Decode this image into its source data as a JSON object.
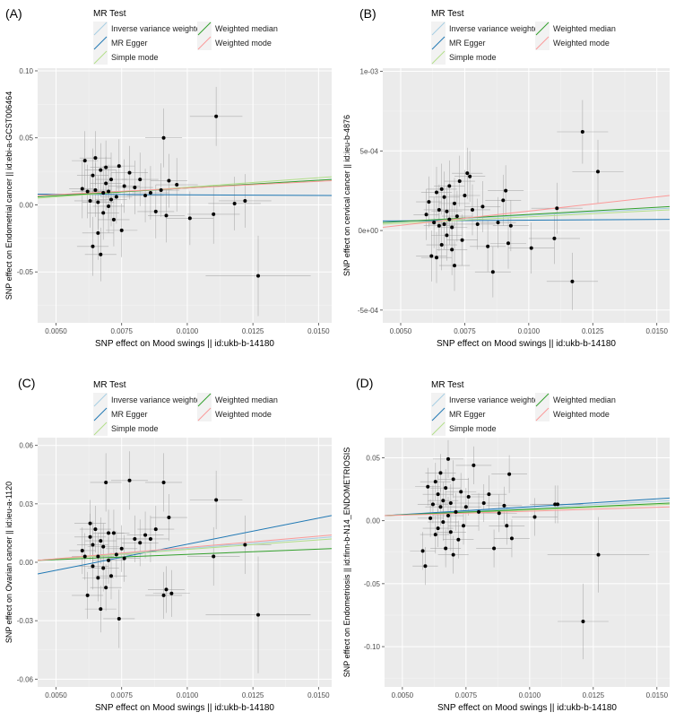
{
  "x_ticks": [
    "0.0050",
    "0.0075",
    "0.0100",
    "0.0125",
    "0.0150"
  ],
  "x_tick_values": [
    0.005,
    0.0075,
    0.01,
    0.0125,
    0.015
  ],
  "legend": {
    "title": "MR Test",
    "entries": [
      {
        "label": "Inverse variance weighted",
        "color": "#a6cee3"
      },
      {
        "label": "MR Egger",
        "color": "#1f78b4"
      },
      {
        "label": "Simple mode",
        "color": "#b2df8a"
      },
      {
        "label": "Weighted median",
        "color": "#33a02c"
      },
      {
        "label": "Weighted mode",
        "color": "#fb9a99"
      }
    ]
  },
  "chart_data": [
    {
      "type": "scatter",
      "panel_label": "(A)",
      "xlabel": "SNP effect on Mood swings || id:ukb-b-14180",
      "ylabel": "SNP effect on Endometrial cancer || id:ebi-a-GCST006464",
      "xlim": [
        0.0043,
        0.0155
      ],
      "ylim": [
        -0.088,
        0.102
      ],
      "y_ticks": [
        "-0.05",
        "0.00",
        "0.05",
        "0.10"
      ],
      "y_tick_values": [
        -0.05,
        0,
        0.05,
        0.1
      ],
      "lines": [
        {
          "method": "Inverse variance weighted",
          "y0": 0.006,
          "y1": 0.019
        },
        {
          "method": "MR Egger",
          "y0": 0.008,
          "y1": 0.007
        },
        {
          "method": "Simple mode",
          "y0": 0.005,
          "y1": 0.021
        },
        {
          "method": "Weighted median",
          "y0": 0.006,
          "y1": 0.019
        },
        {
          "method": "Weighted mode",
          "y0": 0.007,
          "y1": 0.018
        }
      ],
      "points": [
        [
          0.006,
          0.012,
          0.0005,
          0.022
        ],
        [
          0.0061,
          0.033,
          0.0005,
          0.022
        ],
        [
          0.0062,
          0.01,
          0.0006,
          0.02
        ],
        [
          0.0063,
          0.003,
          0.0006,
          0.02
        ],
        [
          0.0064,
          -0.031,
          0.0006,
          0.022
        ],
        [
          0.0064,
          0.022,
          0.0006,
          0.02
        ],
        [
          0.0065,
          0.035,
          0.0006,
          0.02
        ],
        [
          0.0065,
          0.011,
          0.0006,
          0.02
        ],
        [
          0.0066,
          -0.021,
          0.0006,
          0.02
        ],
        [
          0.0066,
          0.002,
          0.0006,
          0.02
        ],
        [
          0.0067,
          0.026,
          0.0006,
          0.02
        ],
        [
          0.0067,
          -0.037,
          0.0006,
          0.02
        ],
        [
          0.0068,
          0.009,
          0.0006,
          0.02
        ],
        [
          0.0068,
          -0.006,
          0.0006,
          0.02
        ],
        [
          0.0069,
          0.028,
          0.0006,
          0.02
        ],
        [
          0.0069,
          0.016,
          0.0006,
          0.02
        ],
        [
          0.007,
          -0.001,
          0.0006,
          0.02
        ],
        [
          0.007,
          0.01,
          0.0006,
          0.02
        ],
        [
          0.0071,
          0.004,
          0.0006,
          0.02
        ],
        [
          0.0071,
          0.019,
          0.0006,
          0.02
        ],
        [
          0.0072,
          -0.011,
          0.0006,
          0.02
        ],
        [
          0.0073,
          0.006,
          0.0006,
          0.02
        ],
        [
          0.0074,
          0.029,
          0.0006,
          0.02
        ],
        [
          0.0075,
          -0.019,
          0.0006,
          0.02
        ],
        [
          0.0076,
          0.014,
          0.0006,
          0.02
        ],
        [
          0.0078,
          0.024,
          0.0007,
          0.02
        ],
        [
          0.008,
          0.013,
          0.0007,
          0.02
        ],
        [
          0.0082,
          0.019,
          0.0007,
          0.02
        ],
        [
          0.0084,
          0.007,
          0.0007,
          0.02
        ],
        [
          0.0086,
          0.009,
          0.0007,
          0.02
        ],
        [
          0.0088,
          -0.005,
          0.0007,
          0.02
        ],
        [
          0.009,
          0.011,
          0.0007,
          0.02
        ],
        [
          0.0091,
          0.05,
          0.0007,
          0.022
        ],
        [
          0.0092,
          -0.008,
          0.0007,
          0.02
        ],
        [
          0.0093,
          0.018,
          0.0007,
          0.02
        ],
        [
          0.0096,
          0.015,
          0.0008,
          0.02
        ],
        [
          0.0101,
          -0.01,
          0.0009,
          0.02
        ],
        [
          0.011,
          -0.007,
          0.001,
          0.022
        ],
        [
          0.0111,
          0.066,
          0.001,
          0.022
        ],
        [
          0.0118,
          0.001,
          0.001,
          0.02
        ],
        [
          0.0122,
          0.003,
          0.001,
          0.02
        ],
        [
          0.0127,
          -0.053,
          0.002,
          0.03
        ]
      ]
    },
    {
      "type": "scatter",
      "panel_label": "(B)",
      "xlabel": "SNP effect on Mood swings || id:ukb-b-14180",
      "ylabel": "SNP effect on cervical cancer || id:ieu-b-4876",
      "xlim": [
        0.0043,
        0.0155
      ],
      "ylim": [
        -0.00058,
        0.00102
      ],
      "y_ticks": [
        "-5e-04",
        "0e+00",
        "5e-04",
        "1e-03"
      ],
      "y_tick_values": [
        -0.0005,
        0,
        0.0005,
        0.001
      ],
      "lines": [
        {
          "method": "Inverse variance weighted",
          "y0": 5e-05,
          "y1": 0.00014
        },
        {
          "method": "MR Egger",
          "y0": 6e-05,
          "y1": 7e-05
        },
        {
          "method": "Simple mode",
          "y0": 4e-05,
          "y1": 0.00013
        },
        {
          "method": "Weighted median",
          "y0": 5e-05,
          "y1": 0.00015
        },
        {
          "method": "Weighted mode",
          "y0": 2e-05,
          "y1": 0.00022
        }
      ],
      "points": [
        [
          0.006,
          0.0001,
          0.0005,
          0.00016
        ],
        [
          0.0061,
          0.00018,
          0.0005,
          0.00016
        ],
        [
          0.0062,
          -0.00016,
          0.0006,
          0.00016
        ],
        [
          0.0063,
          5e-05,
          0.0006,
          0.00016
        ],
        [
          0.0064,
          0.00024,
          0.0006,
          0.00016
        ],
        [
          0.0064,
          -0.00017,
          0.0006,
          0.00016
        ],
        [
          0.0065,
          0.00013,
          0.0006,
          0.00016
        ],
        [
          0.0065,
          3e-05,
          0.0006,
          0.00016
        ],
        [
          0.0066,
          0.00026,
          0.0006,
          0.00016
        ],
        [
          0.0066,
          -9e-05,
          0.0006,
          0.00016
        ],
        [
          0.0067,
          4e-05,
          0.0006,
          0.00016
        ],
        [
          0.0067,
          0.00021,
          0.0006,
          0.00016
        ],
        [
          0.0068,
          -3e-05,
          0.0006,
          0.00016
        ],
        [
          0.0068,
          0.00012,
          0.0006,
          0.00016
        ],
        [
          0.0069,
          7e-05,
          0.0006,
          0.00016
        ],
        [
          0.0069,
          0.00028,
          0.0006,
          0.00016
        ],
        [
          0.007,
          -0.00012,
          0.0006,
          0.00016
        ],
        [
          0.007,
          2e-05,
          0.0006,
          0.00016
        ],
        [
          0.0071,
          0.00017,
          0.0006,
          0.00016
        ],
        [
          0.0071,
          -0.00022,
          0.0006,
          0.00016
        ],
        [
          0.0072,
          9e-05,
          0.0006,
          0.00016
        ],
        [
          0.0073,
          0.00031,
          0.0006,
          0.00016
        ],
        [
          0.0074,
          -6e-05,
          0.0006,
          0.00016
        ],
        [
          0.0075,
          0.00022,
          0.0006,
          0.00016
        ],
        [
          0.0076,
          0.00036,
          0.0006,
          0.00016
        ],
        [
          0.0077,
          0.00034,
          0.0006,
          0.00016
        ],
        [
          0.0078,
          0.00013,
          0.0007,
          0.00016
        ],
        [
          0.008,
          4e-05,
          0.0007,
          0.00016
        ],
        [
          0.0082,
          0.00015,
          0.0007,
          0.00016
        ],
        [
          0.0084,
          -0.0001,
          0.0007,
          0.00016
        ],
        [
          0.0086,
          -0.00026,
          0.0007,
          0.00016
        ],
        [
          0.0088,
          5e-05,
          0.0007,
          0.00016
        ],
        [
          0.009,
          0.00019,
          0.0007,
          0.00016
        ],
        [
          0.0091,
          0.00025,
          0.0007,
          0.00016
        ],
        [
          0.0092,
          -8e-05,
          0.0007,
          0.00016
        ],
        [
          0.0093,
          3e-05,
          0.0007,
          0.00016
        ],
        [
          0.0101,
          -0.00011,
          0.0009,
          0.00016
        ],
        [
          0.011,
          -5e-05,
          0.001,
          0.00016
        ],
        [
          0.0111,
          0.00014,
          0.001,
          0.00016
        ],
        [
          0.0117,
          -0.00032,
          0.001,
          0.00018
        ],
        [
          0.0121,
          0.00062,
          0.001,
          0.0002
        ],
        [
          0.0127,
          0.00037,
          0.001,
          0.0002
        ]
      ]
    },
    {
      "type": "scatter",
      "panel_label": "(C)",
      "xlabel": "SNP effect on Mood swings || id:ukb-b-14180",
      "ylabel": "SNP effect on Ovarian cancer || id:ieu-a-1120",
      "xlim": [
        0.0043,
        0.0155
      ],
      "ylim": [
        -0.064,
        0.064
      ],
      "y_ticks": [
        "-0.06",
        "-0.03",
        "0.00",
        "0.03",
        "0.06"
      ],
      "y_tick_values": [
        -0.06,
        -0.03,
        0,
        0.03,
        0.06
      ],
      "lines": [
        {
          "method": "Inverse variance weighted",
          "y0": 0.001,
          "y1": 0.013
        },
        {
          "method": "MR Egger",
          "y0": -0.006,
          "y1": 0.024
        },
        {
          "method": "Simple mode",
          "y0": 0.001,
          "y1": 0.012
        },
        {
          "method": "Weighted median",
          "y0": 0.001,
          "y1": 0.007
        },
        {
          "method": "Weighted mode",
          "y0": 0.001,
          "y1": 0.014
        }
      ],
      "points": [
        [
          0.006,
          0.006,
          0.0005,
          0.012
        ],
        [
          0.0061,
          0.003,
          0.0005,
          0.012
        ],
        [
          0.0062,
          -0.017,
          0.0006,
          0.012
        ],
        [
          0.0063,
          0.013,
          0.0006,
          0.012
        ],
        [
          0.0063,
          0.02,
          0.0006,
          0.012
        ],
        [
          0.0064,
          -0.002,
          0.0006,
          0.012
        ],
        [
          0.0064,
          0.009,
          0.0006,
          0.012
        ],
        [
          0.0065,
          0.017,
          0.0006,
          0.012
        ],
        [
          0.0066,
          -0.008,
          0.0006,
          0.012
        ],
        [
          0.0066,
          0.003,
          0.0006,
          0.012
        ],
        [
          0.0067,
          -0.024,
          0.0006,
          0.012
        ],
        [
          0.0067,
          0.011,
          0.0006,
          0.012
        ],
        [
          0.0068,
          -0.003,
          0.0006,
          0.012
        ],
        [
          0.0068,
          0.008,
          0.0006,
          0.012
        ],
        [
          0.0069,
          -0.013,
          0.0006,
          0.012
        ],
        [
          0.0069,
          0.041,
          0.0006,
          0.015
        ],
        [
          0.007,
          0.015,
          0.0006,
          0.012
        ],
        [
          0.007,
          0.001,
          0.0006,
          0.012
        ],
        [
          0.0071,
          -0.007,
          0.0006,
          0.012
        ],
        [
          0.0072,
          0.015,
          0.0006,
          0.012
        ],
        [
          0.0073,
          0.004,
          0.0006,
          0.012
        ],
        [
          0.0074,
          -0.029,
          0.0006,
          0.015
        ],
        [
          0.0075,
          0.007,
          0.0006,
          0.012
        ],
        [
          0.0076,
          0.002,
          0.0006,
          0.012
        ],
        [
          0.0078,
          0.042,
          0.0007,
          0.015
        ],
        [
          0.008,
          0.012,
          0.0007,
          0.012
        ],
        [
          0.0082,
          0.01,
          0.0007,
          0.012
        ],
        [
          0.0084,
          0.014,
          0.0007,
          0.012
        ],
        [
          0.0086,
          0.012,
          0.0007,
          0.012
        ],
        [
          0.0088,
          0.017,
          0.0007,
          0.012
        ],
        [
          0.0091,
          0.041,
          0.0007,
          0.015
        ],
        [
          0.0091,
          -0.017,
          0.0007,
          0.012
        ],
        [
          0.0092,
          -0.014,
          0.0007,
          0.012
        ],
        [
          0.0093,
          0.023,
          0.0007,
          0.012
        ],
        [
          0.0094,
          -0.016,
          0.0007,
          0.012
        ],
        [
          0.011,
          0.003,
          0.001,
          0.015
        ],
        [
          0.0111,
          0.032,
          0.001,
          0.015
        ],
        [
          0.0122,
          0.009,
          0.001,
          0.015
        ],
        [
          0.0127,
          -0.027,
          0.002,
          0.03
        ]
      ]
    },
    {
      "type": "scatter",
      "panel_label": "(D)",
      "xlabel": "SNP effect on Mood swings || id:ukb-b-14180",
      "ylabel": "SNP effect on Endometriosis || id:finn-b-N14_ENDOMETRIOSIS",
      "xlim": [
        0.0043,
        0.0155
      ],
      "ylim": [
        -0.132,
        0.066
      ],
      "y_ticks": [
        "-0.10",
        "-0.05",
        "0.00",
        "0.05"
      ],
      "y_tick_values": [
        -0.1,
        -0.05,
        0,
        0.05
      ],
      "lines": [
        {
          "method": "Inverse variance weighted",
          "y0": 0.004,
          "y1": 0.016
        },
        {
          "method": "MR Egger",
          "y0": 0.004,
          "y1": 0.018
        },
        {
          "method": "Simple mode",
          "y0": 0.004,
          "y1": 0.013
        },
        {
          "method": "Weighted median",
          "y0": 0.004,
          "y1": 0.014
        },
        {
          "method": "Weighted mode",
          "y0": 0.004,
          "y1": 0.011
        }
      ],
      "points": [
        [
          0.0058,
          -0.024,
          0.0005,
          0.015
        ],
        [
          0.0059,
          -0.036,
          0.0005,
          0.015
        ],
        [
          0.006,
          0.027,
          0.0005,
          0.015
        ],
        [
          0.0061,
          0.002,
          0.0005,
          0.015
        ],
        [
          0.0062,
          0.013,
          0.0006,
          0.015
        ],
        [
          0.0063,
          -0.011,
          0.0006,
          0.015
        ],
        [
          0.0063,
          0.031,
          0.0006,
          0.015
        ],
        [
          0.0064,
          0.021,
          0.0006,
          0.015
        ],
        [
          0.0064,
          -0.006,
          0.0006,
          0.015
        ],
        [
          0.0065,
          0.011,
          0.0006,
          0.015
        ],
        [
          0.0065,
          0.038,
          0.0006,
          0.015
        ],
        [
          0.0066,
          -0.001,
          0.0006,
          0.015
        ],
        [
          0.0066,
          0.016,
          0.0006,
          0.015
        ],
        [
          0.0067,
          -0.022,
          0.0006,
          0.015
        ],
        [
          0.0067,
          0.026,
          0.0006,
          0.015
        ],
        [
          0.0068,
          0.004,
          0.0006,
          0.015
        ],
        [
          0.0068,
          0.049,
          0.0006,
          0.015
        ],
        [
          0.0069,
          -0.009,
          0.0006,
          0.015
        ],
        [
          0.0069,
          0.014,
          0.0006,
          0.015
        ],
        [
          0.007,
          -0.027,
          0.0006,
          0.015
        ],
        [
          0.007,
          0.033,
          0.0006,
          0.015
        ],
        [
          0.0071,
          0.007,
          0.0006,
          0.015
        ],
        [
          0.0072,
          -0.015,
          0.0006,
          0.015
        ],
        [
          0.0073,
          0.023,
          0.0006,
          0.015
        ],
        [
          0.0074,
          -0.004,
          0.0006,
          0.015
        ],
        [
          0.0075,
          0.011,
          0.0006,
          0.015
        ],
        [
          0.0076,
          0.019,
          0.0006,
          0.015
        ],
        [
          0.0078,
          0.044,
          0.0007,
          0.015
        ],
        [
          0.008,
          0.007,
          0.0007,
          0.015
        ],
        [
          0.0082,
          0.014,
          0.0007,
          0.015
        ],
        [
          0.0084,
          0.021,
          0.0007,
          0.015
        ],
        [
          0.0086,
          -0.022,
          0.0007,
          0.015
        ],
        [
          0.0088,
          0.006,
          0.0007,
          0.015
        ],
        [
          0.009,
          0.012,
          0.0007,
          0.015
        ],
        [
          0.0091,
          -0.004,
          0.0007,
          0.015
        ],
        [
          0.0092,
          0.037,
          0.0007,
          0.015
        ],
        [
          0.0093,
          -0.014,
          0.0007,
          0.015
        ],
        [
          0.0102,
          0.003,
          0.0009,
          0.015
        ],
        [
          0.011,
          0.013,
          0.001,
          0.015
        ],
        [
          0.0111,
          0.013,
          0.001,
          0.015
        ],
        [
          0.0121,
          -0.08,
          0.001,
          0.03
        ],
        [
          0.0127,
          -0.027,
          0.002,
          0.03
        ]
      ]
    }
  ]
}
